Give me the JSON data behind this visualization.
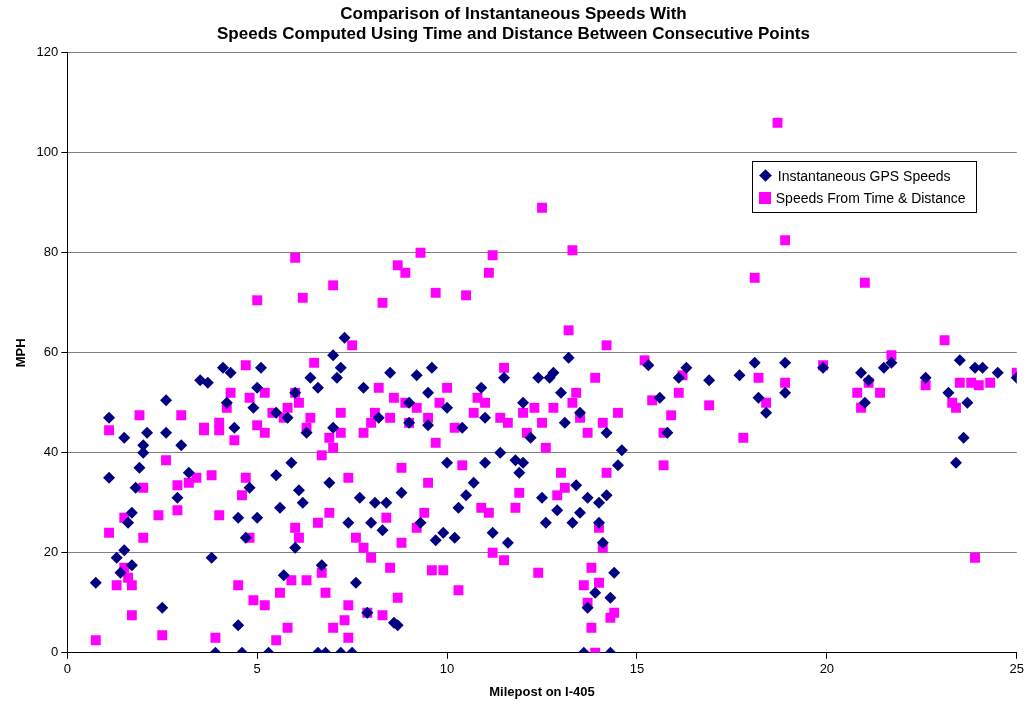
{
  "chart_data": {
    "type": "scatter",
    "title": "Comparison of Instantaneous Speeds With\nSpeeds Computed Using Time and Distance Between Consecutive Points",
    "xlabel": "Milepost on I-405",
    "ylabel": "MPH",
    "xlim": [
      0,
      25
    ],
    "xticks": [
      0,
      5,
      10,
      15,
      20,
      25
    ],
    "ylim": [
      0,
      120
    ],
    "yticks": [
      0,
      20,
      40,
      60,
      80,
      100,
      120
    ],
    "grid": "y",
    "legend": "top right",
    "series": [
      {
        "name": "Instantaneous GPS Speeds",
        "color": "#000080",
        "marker": "diamond",
        "x": [
          0.75,
          1.1,
          1.1,
          1.3,
          1.4,
          1.5,
          1.5,
          1.6,
          1.7,
          1.7,
          1.8,
          1.9,
          2.0,
          2.0,
          2.1,
          2.5,
          2.6,
          2.6,
          2.9,
          3.0,
          3.2,
          3.5,
          3.7,
          3.8,
          3.9,
          4.1,
          4.3,
          4.4,
          4.5,
          4.5,
          4.6,
          4.7,
          4.8,
          4.9,
          5.0,
          5.1,
          5.3,
          5.5,
          5.6,
          5.7,
          5.8,
          5.9,
          6.0,
          6.1,
          6.2,
          6.4,
          6.6,
          6.6,
          6.7,
          6.8,
          6.9,
          7.0,
          7.1,
          7.2,
          7.2,
          7.3,
          7.4,
          7.5,
          7.6,
          7.7,
          7.9,
          8.0,
          8.1,
          8.3,
          8.4,
          8.5,
          8.6,
          8.7,
          8.8,
          9.0,
          9.2,
          9.3,
          9.5,
          9.6,
          9.7,
          9.9,
          10.0,
          10.2,
          10.3,
          10.4,
          10.5,
          10.7,
          10.9,
          11.0,
          11.2,
          11.4,
          11.6,
          11.8,
          11.9,
          12.0,
          12.2,
          12.4,
          12.5,
          12.6,
          12.8,
          12.9,
          13.1,
          13.2,
          13.3,
          13.4,
          13.5,
          13.6,
          13.7,
          13.7,
          13.9,
          14.0,
          14.0,
          14.1,
          14.2,
          14.2,
          14.3,
          14.3,
          14.5,
          14.6,
          14.4,
          15.3,
          15.6,
          15.8,
          16.1,
          16.3,
          16.9,
          17.7,
          18.1,
          18.2,
          18.4,
          18.9,
          18.9,
          19.9,
          20.9,
          21.0,
          21.1,
          21.5,
          21.7,
          22.6,
          23.2,
          23.4,
          23.5,
          23.6,
          23.7,
          23.9,
          24.1,
          25.0,
          24.5,
          5.5,
          6.3,
          7.0,
          8.2,
          9.0,
          10.0,
          11.0,
          12.0,
          13.0,
          13.5,
          6.0,
          4.2,
          5.0,
          7.8,
          9.5,
          11.5,
          12.7
        ],
        "values": [
          14,
          47,
          35,
          19,
          16,
          20.5,
          43,
          26,
          17.5,
          28,
          33,
          37,
          40,
          41.5,
          44,
          9,
          44,
          50.5,
          31,
          41.5,
          36,
          54.5,
          54,
          19,
          0,
          57,
          56,
          45,
          5.5,
          27,
          0,
          23,
          33,
          49,
          27,
          57,
          0,
          35.5,
          29,
          15.5,
          47,
          38,
          21,
          32.5,
          30,
          55,
          53,
          0,
          17.5,
          0,
          34,
          59.5,
          55,
          57,
          0,
          63,
          26,
          0,
          14,
          31,
          8,
          26,
          30,
          24.5,
          30,
          56,
          6,
          5.5,
          32,
          46,
          55.5,
          26,
          45.5,
          57,
          22.5,
          24,
          38,
          23,
          29,
          45,
          31.5,
          34,
          53,
          38,
          24,
          40,
          22,
          38.5,
          36,
          38,
          43,
          55,
          31,
          26,
          56,
          28.5,
          46,
          59,
          26,
          33.5,
          28,
          0,
          9,
          31,
          12,
          26,
          30,
          22,
          44,
          31.5,
          11,
          0,
          37.5,
          40.5,
          16,
          57.5,
          51,
          44,
          55,
          57,
          54.5,
          55.5,
          58,
          51,
          48,
          58,
          52,
          57,
          56,
          50,
          54.5,
          57,
          58,
          55,
          52,
          38,
          58.5,
          43,
          50,
          57,
          57,
          55,
          56,
          48,
          44,
          45,
          47,
          50,
          49,
          47,
          50,
          52,
          48,
          52,
          50,
          53,
          53,
          52,
          55,
          55
        ]
      },
      {
        "name": "Speeds From Time & Distance",
        "color": "#ff00ff",
        "marker": "square",
        "x": [
          0.75,
          1.1,
          1.1,
          1.3,
          1.5,
          1.5,
          1.6,
          1.7,
          1.7,
          1.9,
          2.0,
          2.0,
          2.4,
          2.5,
          2.6,
          2.9,
          2.9,
          3.0,
          3.2,
          3.4,
          3.6,
          3.8,
          3.9,
          4.0,
          4.0,
          4.2,
          4.3,
          4.4,
          4.5,
          4.6,
          4.7,
          4.7,
          4.8,
          4.8,
          4.9,
          5.0,
          5.0,
          5.2,
          5.2,
          5.4,
          5.5,
          5.6,
          5.7,
          5.8,
          5.9,
          6.0,
          6.0,
          6.1,
          6.1,
          6.2,
          6.3,
          6.4,
          6.5,
          6.6,
          6.7,
          6.7,
          6.8,
          6.9,
          7.0,
          7.0,
          7.0,
          7.2,
          7.3,
          7.4,
          7.4,
          7.5,
          7.4,
          7.6,
          7.8,
          7.9,
          8.0,
          8.0,
          8.2,
          8.3,
          8.3,
          8.4,
          8.5,
          8.6,
          8.7,
          8.7,
          8.9,
          8.8,
          8.8,
          9.0,
          9.2,
          9.2,
          9.3,
          9.4,
          9.5,
          9.6,
          9.7,
          9.7,
          9.9,
          10.0,
          10.3,
          10.4,
          10.5,
          10.7,
          10.9,
          11.1,
          11.1,
          11.2,
          11.2,
          11.4,
          11.5,
          11.5,
          11.8,
          11.9,
          12.1,
          12.3,
          12.4,
          12.5,
          12.6,
          12.9,
          13.0,
          13.1,
          13.2,
          13.3,
          13.3,
          13.5,
          13.6,
          13.7,
          13.8,
          13.8,
          13.9,
          13.9,
          14.0,
          14.0,
          14.1,
          14.2,
          14.2,
          14.3,
          14.4,
          14.5,
          15.2,
          15.4,
          15.7,
          15.7,
          15.9,
          16.1,
          16.2,
          16.9,
          17.8,
          18.1,
          18.2,
          18.4,
          18.7,
          18.9,
          18.9,
          19.9,
          20.8,
          20.9,
          21.0,
          21.1,
          21.4,
          21.7,
          22.6,
          23.1,
          23.3,
          23.4,
          23.5,
          23.9,
          23.8,
          24.0,
          24.3,
          25.0,
          5.8,
          6.0,
          6.3,
          7.8,
          8.1,
          8.9,
          9.5,
          10.2,
          10.8,
          11.6,
          12.0,
          12.5,
          13.4,
          13.7,
          14.1,
          7.2,
          9.8,
          3.6,
          4.0,
          5.2,
          6.9,
          8.5,
          11.0,
          12.8
        ],
        "values": [
          2.5,
          44.5,
          24,
          13.5,
          27,
          17,
          15,
          13.5,
          7.5,
          47.5,
          33,
          23,
          27.5,
          3.5,
          38.5,
          33.5,
          28.5,
          47.5,
          34,
          35,
          44.5,
          35.5,
          3,
          27.5,
          44.5,
          49,
          52,
          42.5,
          13.5,
          31.5,
          35,
          57.5,
          23,
          51,
          10.5,
          70.5,
          45.5,
          9.5,
          44,
          48,
          2.5,
          12,
          47,
          5,
          14.5,
          79,
          25,
          23,
          50,
          71,
          14.5,
          47,
          58,
          26,
          39.5,
          16,
          12,
          28,
          73.5,
          5,
          41,
          44,
          6.5,
          9.5,
          3,
          61.5,
          35,
          23,
          21,
          8,
          19,
          46,
          53,
          7.5,
          70,
          27,
          17,
          51,
          11,
          77.5,
          76,
          37,
          22,
          46,
          25,
          49,
          80,
          28,
          34,
          16.5,
          72,
          42,
          16.5,
          53,
          12.5,
          37.5,
          71.5,
          48,
          29,
          28,
          76,
          79.5,
          20,
          47,
          18.5,
          57,
          29,
          32,
          44,
          49,
          16,
          89,
          41,
          31.5,
          36,
          33,
          64.5,
          80.5,
          50,
          47,
          13.5,
          10,
          17,
          5,
          0,
          55,
          25,
          14,
          21,
          61.5,
          36,
          7,
          8,
          48,
          58.5,
          50.5,
          37.5,
          44,
          47.5,
          52,
          55.5,
          49.5,
          43,
          75,
          55,
          50,
          106,
          82.5,
          54,
          57.5,
          52,
          49,
          74,
          54,
          52,
          59.5,
          53.5,
          62.5,
          50,
          49,
          54,
          19,
          54,
          53.5,
          54,
          56,
          49,
          52,
          45,
          44,
          48,
          50,
          47,
          45,
          51,
          46,
          48,
          46,
          52,
          44,
          46,
          48,
          50,
          45,
          46,
          52,
          43,
          47,
          50,
          49
        ]
      }
    ]
  }
}
